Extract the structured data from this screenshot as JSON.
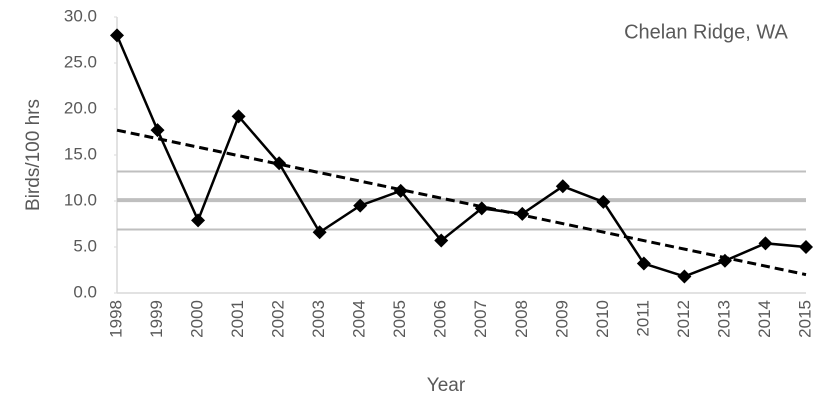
{
  "chart_data": {
    "type": "line",
    "annotation": "Chelan Ridge, WA",
    "xlabel": "Year",
    "ylabel": "Birds/100 hrs",
    "categories": [
      "1998",
      "1999",
      "2000",
      "2001",
      "2002",
      "2003",
      "2004",
      "2005",
      "2006",
      "2007",
      "2008",
      "2009",
      "2010",
      "2011",
      "2012",
      "2013",
      "2014",
      "2015"
    ],
    "values": [
      28.0,
      17.7,
      7.9,
      19.2,
      14.1,
      6.6,
      9.5,
      11.1,
      5.7,
      9.2,
      8.6,
      11.6,
      9.9,
      3.2,
      1.8,
      3.5,
      5.4,
      5.0
    ],
    "color": "#000000",
    "trendline": {
      "values": [
        17.7,
        2.0
      ],
      "color": "#000000"
    },
    "reference_lines": [
      13.2,
      10.1,
      6.9
    ],
    "reference_color": "#bfbfbf",
    "ylim": [
      0,
      30
    ],
    "yticks": [
      {
        "value": 0,
        "label": "0.0"
      },
      {
        "value": 5,
        "label": "5.0"
      },
      {
        "value": 10,
        "label": "10.0"
      },
      {
        "value": 15,
        "label": "15.0"
      },
      {
        "value": 20,
        "label": "20.0"
      },
      {
        "value": 25,
        "label": "25.0"
      },
      {
        "value": 30,
        "label": "30.0"
      }
    ]
  }
}
